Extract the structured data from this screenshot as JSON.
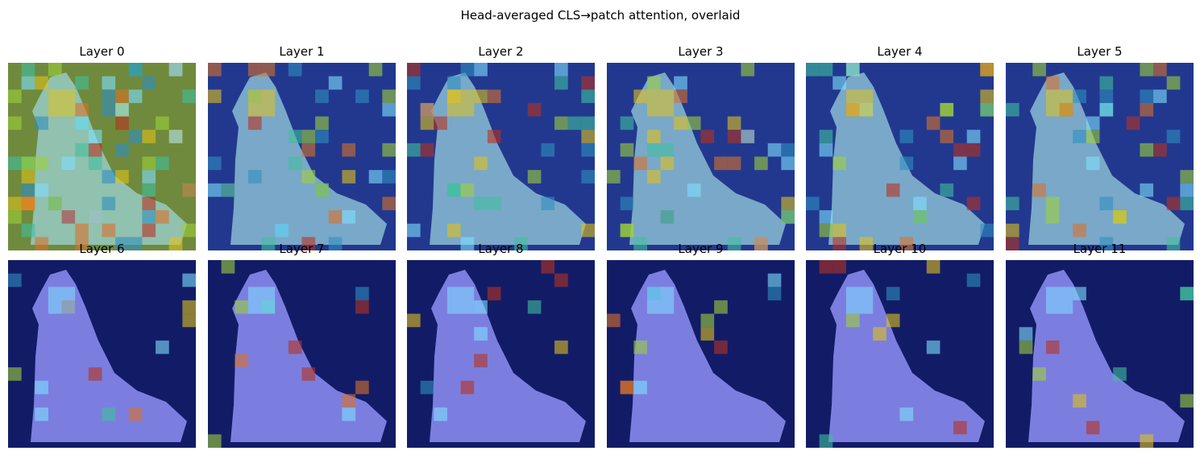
{
  "title": "Head-averaged CLS→patch attention, overlaid",
  "panels": [
    {
      "title": "Layer 0"
    },
    {
      "title": "Layer 1"
    },
    {
      "title": "Layer 2"
    },
    {
      "title": "Layer 3"
    },
    {
      "title": "Layer 4"
    },
    {
      "title": "Layer 5"
    },
    {
      "title": "Layer 6"
    },
    {
      "title": "Layer 7"
    },
    {
      "title": "Layer 8"
    },
    {
      "title": "Layer 9"
    },
    {
      "title": "Layer 10"
    },
    {
      "title": "Layer 11"
    }
  ]
}
